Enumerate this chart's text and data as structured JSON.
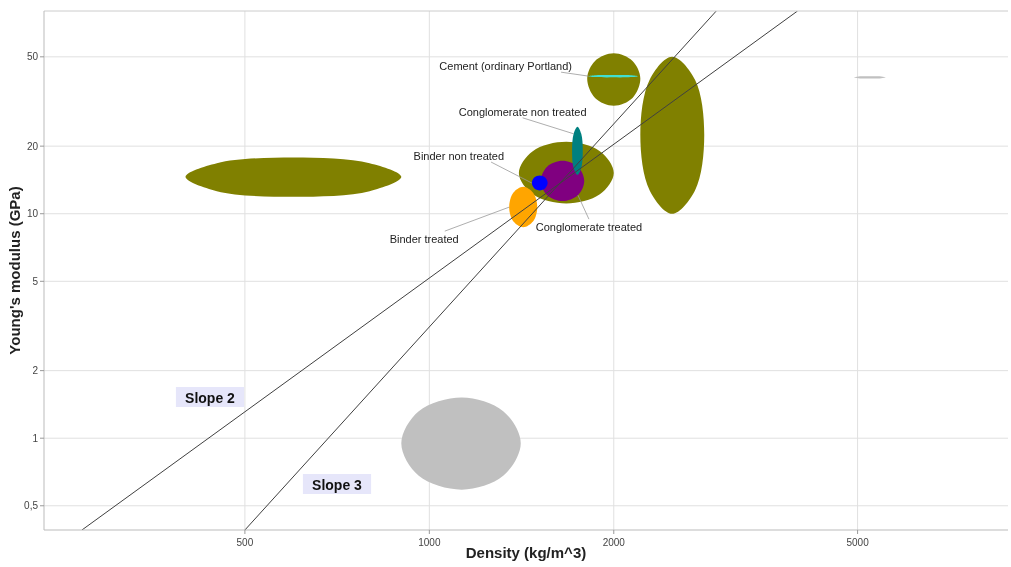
{
  "chart_data": {
    "type": "area",
    "xlabel": "Density (kg/m^3)",
    "ylabel": "Young's modulus (GPa)",
    "log": "xy",
    "grid": true,
    "xlim": [
      235,
      8800
    ],
    "ylim": [
      0.39,
      80
    ],
    "xticks": [
      500,
      1000,
      2000,
      5000
    ],
    "yticks": [
      {
        "value": 0.5,
        "label": "0,5"
      },
      1,
      2,
      5,
      10,
      20,
      50
    ],
    "series": [
      {
        "color": "#808000",
        "x": [
          400,
          450,
          600,
          799,
          900,
          799,
          600,
          450
        ],
        "values": [
          14.6,
          16.8,
          17.8,
          16.8,
          14.6,
          12.6,
          11.9,
          12.6
        ]
      },
      {
        "color": "#c0c0c0",
        "x": [
          900,
          961,
          1130,
          1320,
          1410,
          1320,
          1130,
          961
        ],
        "values": [
          0.95,
          1.32,
          1.52,
          1.32,
          0.95,
          0.68,
          0.59,
          0.68
        ]
      },
      {
        "color": "#808000",
        "x": [
          1810,
          1864,
          2000,
          2146,
          2210,
          2146,
          2000,
          1864
        ],
        "values": [
          40,
          47.9,
          51.8,
          47.9,
          40,
          32.8,
          30.3,
          32.8
        ]
      },
      {
        "color": "#808000",
        "x": [
          2210,
          2289,
          2490,
          2714,
          2810,
          2714,
          2490,
          2289
        ],
        "values": [
          22.4,
          39.5,
          50,
          39.5,
          22.4,
          12.7,
          10,
          12.7
        ]
      },
      {
        "color": "#808000",
        "x": [
          1400,
          1475,
          1673,
          1898,
          2000,
          1898,
          1673,
          1475
        ],
        "values": [
          15.2,
          19,
          20.9,
          19,
          15.2,
          12.2,
          11.1,
          12.2
        ]
      },
      {
        "color": "#800080",
        "x": [
          1520,
          1557,
          1650,
          1748,
          1790,
          1748,
          1650,
          1557
        ],
        "values": [
          14,
          16.2,
          17.2,
          16.2,
          14,
          12.1,
          11.4,
          12.1
        ]
      },
      {
        "color": "#008080",
        "x": [
          1710,
          1720,
          1745,
          1770,
          1780,
          1770,
          1745,
          1720
        ],
        "values": [
          19.1,
          22.7,
          24.4,
          22.7,
          19.1,
          16,
          14.9,
          16
        ]
      },
      {
        "color": "#0000ff",
        "x": [
          1470,
          1483,
          1514,
          1546,
          1560,
          1546,
          1514,
          1483
        ],
        "values": [
          13.7,
          14.5,
          14.8,
          14.5,
          13.7,
          13,
          12.7,
          13
        ]
      },
      {
        "color": "#ffa500",
        "x": [
          1350,
          1371,
          1423,
          1477,
          1500,
          1477,
          1423,
          1371
        ],
        "values": [
          10.7,
          12.4,
          13.2,
          12.4,
          10.7,
          9.25,
          8.7,
          9.25
        ]
      },
      {
        "color": "#40e0d0",
        "x": [
          1820,
          1870,
          1997,
          2132,
          2190,
          2132,
          1997,
          1870
        ],
        "values": [
          41,
          41.4,
          41.5,
          41.4,
          41,
          40.6,
          40.5,
          40.6
        ]
      },
      {
        "color": "#c0c0c0",
        "x": [
          4930,
          5018,
          5236,
          5464,
          5560,
          5464,
          5236,
          5018
        ],
        "values": [
          40.5,
          40.9,
          41,
          40.9,
          40.5,
          40.1,
          40,
          40.1
        ]
      },
      {
        "type": "line",
        "x": [
          271,
          3990
        ],
        "values": [
          0.39,
          80
        ],
        "color": "#404040"
      },
      {
        "type": "line",
        "x": [
          500,
          2940
        ],
        "values": [
          0.39,
          80
        ],
        "color": "#404040"
      }
    ],
    "annotations": [
      {
        "text": "Cement (ordinary Portland)",
        "x": 1820,
        "y": 41
      },
      {
        "text": "Conglomerate non treated",
        "x": 1720,
        "y": 22.7
      },
      {
        "text": "Binder non treated",
        "x": 1470,
        "y": 13.7
      },
      {
        "text": "Binder treated",
        "x": 1350,
        "y": 10.7
      },
      {
        "text": "Conglomerate treated",
        "x": 1748,
        "y": 12.1
      },
      "Slope 2",
      "Slope 3"
    ]
  }
}
